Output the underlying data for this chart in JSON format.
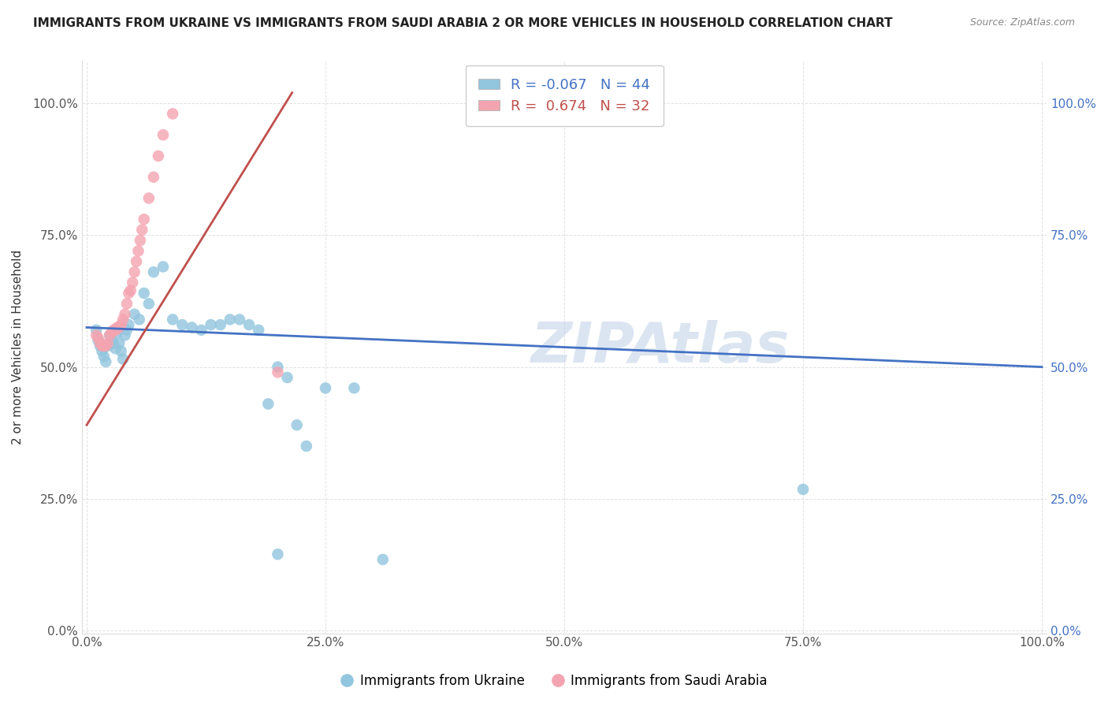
{
  "title": "IMMIGRANTS FROM UKRAINE VS IMMIGRANTS FROM SAUDI ARABIA 2 OR MORE VEHICLES IN HOUSEHOLD CORRELATION CHART",
  "source": "Source: ZipAtlas.com",
  "ylabel": "2 or more Vehicles in Household",
  "ytick_labels": [
    "0.0%",
    "25.0%",
    "50.0%",
    "75.0%",
    "100.0%"
  ],
  "ytick_values": [
    0.0,
    0.25,
    0.5,
    0.75,
    1.0
  ],
  "xtick_labels": [
    "0.0%",
    "25.0%",
    "50.0%",
    "75.0%",
    "100.0%"
  ],
  "xtick_values": [
    0.0,
    0.25,
    0.5,
    0.75,
    1.0
  ],
  "ukraine_color": "#92C5DE",
  "saudi_color": "#F4A4B0",
  "ukraine_line_color": "#4472C4",
  "saudi_line_color": "#C0504D",
  "R_ukraine": -0.067,
  "N_ukraine": 44,
  "R_saudi": 0.674,
  "N_saudi": 32,
  "ukraine_x": [
    0.01,
    0.012,
    0.014,
    0.016,
    0.018,
    0.02,
    0.022,
    0.024,
    0.026,
    0.028,
    0.03,
    0.032,
    0.034,
    0.036,
    0.038,
    0.04,
    0.042,
    0.044,
    0.05,
    0.055,
    0.06,
    0.065,
    0.07,
    0.08,
    0.09,
    0.1,
    0.11,
    0.12,
    0.13,
    0.14,
    0.15,
    0.16,
    0.17,
    0.18,
    0.19,
    0.2,
    0.21,
    0.22,
    0.23,
    0.25,
    0.28,
    0.31,
    0.75,
    0.2
  ],
  "ukraine_y": [
    0.57,
    0.55,
    0.54,
    0.53,
    0.52,
    0.51,
    0.54,
    0.56,
    0.55,
    0.545,
    0.535,
    0.565,
    0.545,
    0.53,
    0.515,
    0.56,
    0.57,
    0.58,
    0.6,
    0.59,
    0.64,
    0.62,
    0.68,
    0.69,
    0.59,
    0.58,
    0.575,
    0.57,
    0.58,
    0.58,
    0.59,
    0.59,
    0.58,
    0.57,
    0.43,
    0.5,
    0.48,
    0.39,
    0.35,
    0.46,
    0.46,
    0.135,
    0.268,
    0.145
  ],
  "saudi_x": [
    0.01,
    0.012,
    0.014,
    0.016,
    0.018,
    0.02,
    0.022,
    0.024,
    0.026,
    0.028,
    0.03,
    0.032,
    0.034,
    0.036,
    0.038,
    0.04,
    0.042,
    0.044,
    0.046,
    0.048,
    0.05,
    0.052,
    0.054,
    0.056,
    0.058,
    0.06,
    0.065,
    0.07,
    0.075,
    0.08,
    0.09,
    0.2
  ],
  "saudi_y": [
    0.56,
    0.555,
    0.545,
    0.54,
    0.54,
    0.54,
    0.545,
    0.56,
    0.565,
    0.57,
    0.57,
    0.575,
    0.575,
    0.58,
    0.59,
    0.6,
    0.62,
    0.64,
    0.645,
    0.66,
    0.68,
    0.7,
    0.72,
    0.74,
    0.76,
    0.78,
    0.82,
    0.86,
    0.9,
    0.94,
    0.98,
    0.49
  ],
  "watermark": "ZIPAtlas",
  "legend_ukraine_label": "Immigrants from Ukraine",
  "legend_saudi_label": "Immigrants from Saudi Arabia",
  "ukraine_line_x": [
    0.0,
    1.0
  ],
  "ukraine_line_y": [
    0.575,
    0.5
  ],
  "saudi_line_x": [
    0.0,
    0.215
  ],
  "saudi_line_y": [
    0.39,
    1.02
  ]
}
